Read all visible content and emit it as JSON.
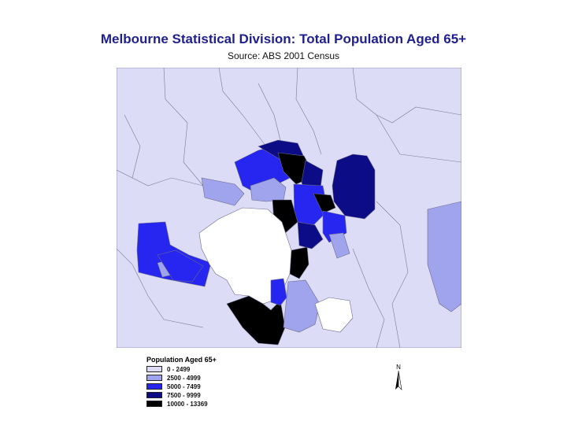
{
  "header": {
    "title": "Melbourne Statistical Division: Total Population Aged 65+",
    "subtitle": "Source:  ABS 2001 Census"
  },
  "legend": {
    "title": "Population Aged 65+",
    "classes": [
      {
        "label": "0 - 2499",
        "color": "#dcdcf6"
      },
      {
        "label": "2500 - 4999",
        "color": "#a0a4ec"
      },
      {
        "label": "5000 - 7499",
        "color": "#2626f0"
      },
      {
        "label": "7500 - 9999",
        "color": "#0c0c86"
      },
      {
        "label": "10000 - 13369",
        "color": "#000000"
      }
    ]
  },
  "north_arrow": {
    "label": "N"
  },
  "colors": {
    "sea": "#ffffff",
    "boundary": "#6a6a8a",
    "title": "#1f1f8f"
  }
}
